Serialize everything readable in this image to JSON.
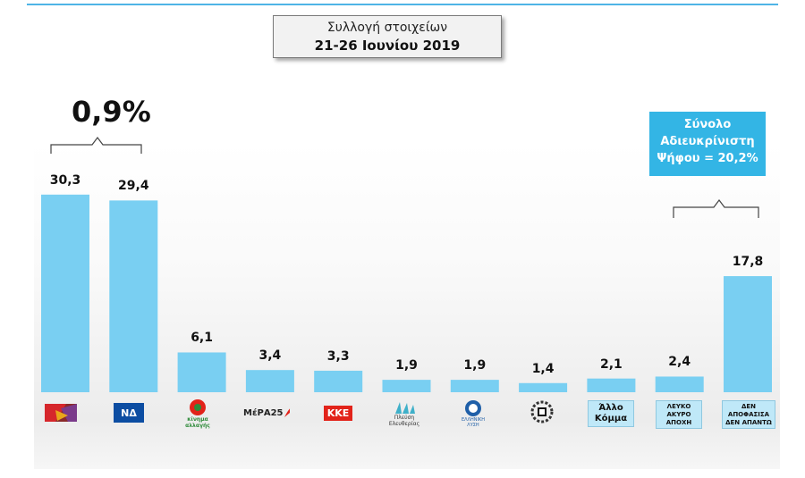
{
  "header": {
    "line1": "Συλλογή στοιχείων",
    "line2": "21-26 Ιουνίου 2019"
  },
  "annotations": {
    "gap_label": "0,9%",
    "undecided_box": [
      "Σύνολο",
      "Αδιευκρίνιστη",
      "Ψήφου = 20,2%"
    ]
  },
  "colors": {
    "bar": "#79cff2",
    "accent": "#33b5e5",
    "kke_red": "#e2231a",
    "syriza_red": "#d6262b",
    "nd_blue": "#0c4da2",
    "kinal_green": "#2e8b3a"
  },
  "chart_data": {
    "type": "bar",
    "title": "",
    "xlabel": "",
    "ylabel": "",
    "ylim": [
      0,
      35
    ],
    "categories": [
      "ΣΥΡΙΖΑ",
      "ΝΔ",
      "ΚΙΝΑΛ",
      "ΜέΡΑ25",
      "ΚΚΕ",
      "Πλεύση Ελευθερίας",
      "Ελληνική Λύση",
      "Χρυσή Αυγή",
      "Άλλο Κόμμα",
      "ΛΕΥΚΟ ΑΚΥΡΟ ΑΠΟΧΗ",
      "ΔΕΝ ΑΠΟΦΑΣΙΣΑ ΔΕΝ ΑΠΑΝΤΩ"
    ],
    "values": [
      30.3,
      29.4,
      6.1,
      3.4,
      3.3,
      1.9,
      1.9,
      1.4,
      2.1,
      2.4,
      17.8
    ],
    "value_labels": [
      "30,3",
      "29,4",
      "6,1",
      "3,4",
      "3,3",
      "1,9",
      "1,9",
      "1,4",
      "2,1",
      "2,4",
      "17,8"
    ]
  },
  "logos": {
    "nd_text": "ΝΔ",
    "kinal_text": [
      "κίνημα",
      "αλλαγής"
    ],
    "mera_text": "ΜέΡΑ25",
    "kke_text": "ΚΚΕ",
    "plefsi_text": [
      "Πλεύση",
      "Ελευθερίας"
    ],
    "ellisi_text": [
      "ΕΛΛΗΝΙΚΗ",
      "ΛΥΣΗ"
    ],
    "allo_text": [
      "Άλλο",
      "Κόμμα"
    ],
    "lefko_text": [
      "ΛΕΥΚΟ",
      "ΑΚΥΡΟ",
      "ΑΠΟΧΗ"
    ],
    "den_text": [
      "ΔΕΝ",
      "ΑΠΟΦΑΣΙΣΑ",
      "ΔΕΝ ΑΠΑΝΤΩ"
    ]
  }
}
